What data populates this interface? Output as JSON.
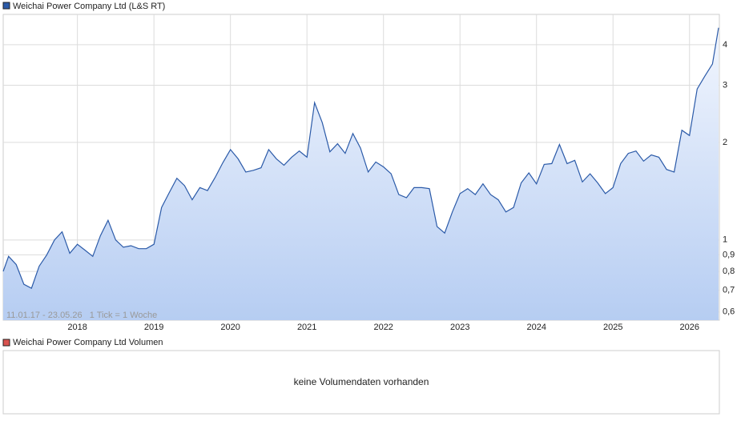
{
  "chart_data": {
    "type": "line",
    "log_scale": true,
    "grid": true,
    "legend": "top-left",
    "annotation": "11.01.17 - 23.05.26   1 Tick = 1 Woche",
    "xlim": [
      2017.03,
      2026.39
    ],
    "xticks": [
      2018,
      2019,
      2020,
      2021,
      2022,
      2023,
      2024,
      2025,
      2026
    ],
    "ylim": [
      0.566,
      4.96
    ],
    "yticks": [
      {
        "value": 0.6,
        "label": "0,6"
      },
      {
        "value": 0.7,
        "label": "0,7"
      },
      {
        "value": 0.8,
        "label": "0,8"
      },
      {
        "value": 0.9,
        "label": "0,9"
      },
      1,
      2,
      3,
      4
    ],
    "x": [
      2017.03,
      2017.1,
      2017.2,
      2017.3,
      2017.4,
      2017.5,
      2017.6,
      2017.7,
      2017.8,
      2017.9,
      2018.0,
      2018.1,
      2018.2,
      2018.3,
      2018.4,
      2018.5,
      2018.6,
      2018.7,
      2018.8,
      2018.9,
      2019.0,
      2019.1,
      2019.2,
      2019.3,
      2019.4,
      2019.5,
      2019.6,
      2019.7,
      2019.8,
      2019.9,
      2020.0,
      2020.1,
      2020.2,
      2020.3,
      2020.4,
      2020.5,
      2020.6,
      2020.7,
      2020.8,
      2020.9,
      2021.0,
      2021.1,
      2021.2,
      2021.3,
      2021.4,
      2021.5,
      2021.6,
      2021.7,
      2021.8,
      2021.9,
      2022.0,
      2022.1,
      2022.2,
      2022.3,
      2022.4,
      2022.5,
      2022.6,
      2022.7,
      2022.8,
      2022.9,
      2023.0,
      2023.1,
      2023.2,
      2023.3,
      2023.4,
      2023.5,
      2023.6,
      2023.7,
      2023.8,
      2023.9,
      2024.0,
      2024.1,
      2024.2,
      2024.3,
      2024.4,
      2024.5,
      2024.6,
      2024.7,
      2024.8,
      2024.9,
      2025.0,
      2025.1,
      2025.2,
      2025.3,
      2025.4,
      2025.5,
      2025.6,
      2025.7,
      2025.8,
      2025.9,
      2026.0,
      2026.1,
      2026.2,
      2026.3,
      2026.38
    ],
    "series": [
      {
        "name": "Weichai Power Company Ltd (L&S RT)",
        "color": "#2b5aa8",
        "values": [
          0.8,
          0.89,
          0.84,
          0.73,
          0.71,
          0.83,
          0.9,
          1.0,
          1.06,
          0.91,
          0.97,
          0.93,
          0.89,
          1.03,
          1.15,
          1.0,
          0.95,
          0.96,
          0.94,
          0.94,
          0.97,
          1.26,
          1.4,
          1.55,
          1.47,
          1.33,
          1.45,
          1.42,
          1.56,
          1.73,
          1.9,
          1.78,
          1.62,
          1.64,
          1.67,
          1.9,
          1.78,
          1.7,
          1.8,
          1.88,
          1.8,
          2.65,
          2.3,
          1.87,
          1.98,
          1.85,
          2.13,
          1.92,
          1.62,
          1.74,
          1.68,
          1.6,
          1.38,
          1.35,
          1.45,
          1.45,
          1.44,
          1.1,
          1.05,
          1.22,
          1.39,
          1.44,
          1.38,
          1.49,
          1.38,
          1.33,
          1.22,
          1.26,
          1.5,
          1.61,
          1.49,
          1.71,
          1.72,
          1.97,
          1.72,
          1.76,
          1.51,
          1.6,
          1.5,
          1.39,
          1.45,
          1.72,
          1.85,
          1.88,
          1.75,
          1.83,
          1.8,
          1.65,
          1.62,
          2.18,
          2.1,
          2.92,
          3.2,
          3.49,
          4.51
        ]
      }
    ]
  },
  "volume_panel": {
    "title": "Weichai Power Company Ltd Volumen",
    "color": "#d9534f",
    "message": "keine Volumendaten vorhanden"
  }
}
